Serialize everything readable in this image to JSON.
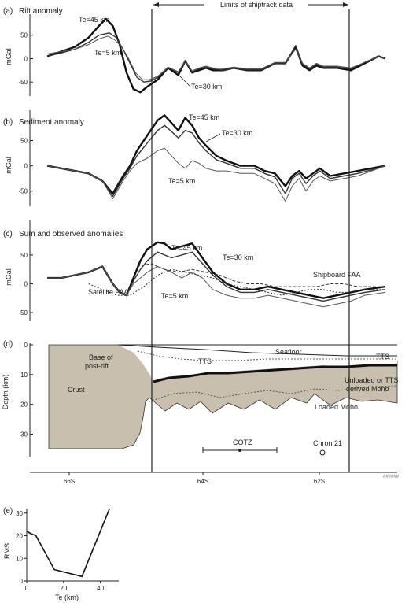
{
  "figure": {
    "header": "Limits of shiptrack data",
    "xtick_labels": [
      "66S",
      "64S",
      "62S"
    ],
    "figure_code": "######"
  },
  "chart_data": [
    {
      "id": "a",
      "type": "line",
      "label": "(a)",
      "title": "Rift anomaly",
      "ylabel": "mGal",
      "yticks": [
        50,
        0,
        -50
      ],
      "ylim": [
        -80,
        95
      ],
      "series": [
        {
          "name": "Te=45 km",
          "x": [
            0,
            20,
            40,
            60,
            75,
            85,
            95,
            105,
            115,
            125,
            135,
            145,
            160,
            175,
            190,
            200,
            210,
            220,
            230,
            240,
            255,
            270,
            290,
            310,
            330,
            345,
            360,
            370,
            380,
            390,
            400,
            420,
            440,
            460,
            480,
            490
          ],
          "y": [
            5,
            15,
            25,
            45,
            70,
            85,
            70,
            30,
            -30,
            -65,
            -72,
            -60,
            -45,
            -20,
            -35,
            -5,
            -30,
            -25,
            -20,
            -25,
            -25,
            -20,
            -25,
            -25,
            -10,
            -10,
            25,
            -15,
            -25,
            -15,
            -20,
            -20,
            -25,
            -10,
            5,
            0
          ]
        },
        {
          "name": "Te=30 km",
          "x": [
            0,
            20,
            40,
            60,
            75,
            90,
            100,
            110,
            120,
            130,
            140,
            150,
            160,
            175,
            190,
            200,
            210,
            220,
            230,
            240,
            255,
            270,
            290,
            310,
            330,
            345,
            360,
            370,
            380,
            390,
            400,
            420,
            440,
            460,
            480,
            490
          ],
          "y": [
            5,
            12,
            20,
            35,
            50,
            55,
            45,
            20,
            -10,
            -40,
            -50,
            -48,
            -40,
            -20,
            -30,
            -5,
            -28,
            -22,
            -18,
            -22,
            -25,
            -20,
            -24,
            -24,
            -10,
            -10,
            28,
            -12,
            -22,
            -12,
            -18,
            -18,
            -22,
            -8,
            5,
            0
          ]
        },
        {
          "name": "Te=5 km",
          "x": [
            0,
            20,
            40,
            60,
            75,
            88,
            98,
            108,
            118,
            128,
            138,
            148,
            160,
            175,
            190,
            200,
            210,
            220,
            230,
            240,
            255,
            270,
            290,
            310,
            330,
            345,
            360,
            370,
            380,
            390,
            400,
            420,
            440,
            460,
            480,
            490
          ],
          "y": [
            10,
            15,
            20,
            30,
            42,
            48,
            40,
            25,
            0,
            -30,
            -45,
            -45,
            -38,
            -18,
            -28,
            -5,
            -26,
            -20,
            -16,
            -20,
            -22,
            -18,
            -22,
            -22,
            -8,
            -8,
            20,
            -10,
            -20,
            -10,
            -16,
            -16,
            -20,
            -8,
            4,
            0
          ]
        }
      ],
      "annotations": [
        "Te=45 km",
        "Te=5 km",
        "Te=30 km"
      ]
    },
    {
      "id": "b",
      "type": "line",
      "label": "(b)",
      "title": "Sediment anomaly",
      "ylabel": "mGal",
      "yticks": [
        50,
        0,
        -50
      ],
      "ylim": [
        -80,
        110
      ],
      "series": [
        {
          "name": "Te=45 km",
          "x": [
            0,
            20,
            40,
            60,
            80,
            95,
            110,
            120,
            130,
            145,
            160,
            170,
            180,
            190,
            200,
            210,
            220,
            230,
            245,
            260,
            280,
            300,
            315,
            330,
            345,
            355,
            365,
            375,
            385,
            395,
            410,
            430,
            450,
            470,
            490
          ],
          "y": [
            0,
            -5,
            -10,
            -15,
            -30,
            -55,
            -20,
            0,
            30,
            60,
            90,
            100,
            85,
            70,
            95,
            80,
            55,
            40,
            20,
            10,
            0,
            0,
            -10,
            -15,
            -40,
            -20,
            -10,
            -25,
            -15,
            -5,
            -20,
            -15,
            -10,
            -5,
            0
          ]
        },
        {
          "name": "Te=30 km",
          "x": [
            0,
            20,
            40,
            60,
            80,
            95,
            110,
            120,
            130,
            145,
            160,
            170,
            180,
            190,
            200,
            210,
            220,
            230,
            245,
            260,
            280,
            300,
            315,
            330,
            345,
            355,
            365,
            375,
            385,
            395,
            410,
            430,
            450,
            470,
            490
          ],
          "y": [
            0,
            -5,
            -10,
            -15,
            -30,
            -60,
            -25,
            -5,
            20,
            45,
            70,
            80,
            68,
            55,
            70,
            65,
            45,
            30,
            12,
            5,
            -5,
            -5,
            -15,
            -22,
            -55,
            -25,
            -15,
            -35,
            -20,
            -10,
            -25,
            -20,
            -15,
            -8,
            0
          ]
        },
        {
          "name": "Te=5 km",
          "x": [
            0,
            20,
            40,
            60,
            80,
            95,
            110,
            120,
            130,
            145,
            160,
            170,
            180,
            190,
            200,
            210,
            220,
            230,
            245,
            260,
            280,
            300,
            315,
            330,
            345,
            355,
            365,
            375,
            385,
            395,
            410,
            430,
            450,
            470,
            490
          ],
          "y": [
            0,
            -5,
            -10,
            -15,
            -30,
            -65,
            -30,
            -10,
            5,
            15,
            30,
            35,
            20,
            5,
            -5,
            10,
            5,
            -5,
            -10,
            -10,
            -15,
            -15,
            -25,
            -35,
            -70,
            -40,
            -25,
            -50,
            -30,
            -20,
            -30,
            -25,
            -20,
            -10,
            0
          ]
        }
      ],
      "annotations": [
        "Te=45 km",
        "Te=30 km",
        "Te=5 km"
      ]
    },
    {
      "id": "c",
      "type": "line",
      "label": "(c)",
      "title": "Sum and observed anomalies",
      "ylabel": "mGal",
      "yticks": [
        50,
        0,
        -50
      ],
      "ylim": [
        -65,
        110
      ],
      "series": [
        {
          "name": "Te=45 km",
          "x": [
            0,
            20,
            40,
            60,
            80,
            95,
            105,
            115,
            125,
            135,
            145,
            160,
            170,
            180,
            195,
            210,
            225,
            240,
            260,
            280,
            300,
            320,
            340,
            360,
            380,
            400,
            420,
            440,
            460,
            490
          ],
          "y": [
            10,
            10,
            15,
            20,
            30,
            0,
            -15,
            -20,
            10,
            40,
            60,
            72,
            70,
            60,
            65,
            70,
            45,
            20,
            0,
            -10,
            -10,
            -5,
            -10,
            -15,
            -20,
            -25,
            -20,
            -15,
            -10,
            -5
          ]
        },
        {
          "name": "Te=30 km",
          "x": [
            0,
            20,
            40,
            60,
            80,
            95,
            105,
            115,
            125,
            135,
            145,
            160,
            170,
            180,
            195,
            210,
            225,
            240,
            260,
            280,
            300,
            320,
            340,
            360,
            380,
            400,
            420,
            440,
            460,
            490
          ],
          "y": [
            10,
            10,
            15,
            20,
            30,
            0,
            -15,
            -20,
            5,
            25,
            40,
            55,
            50,
            45,
            50,
            55,
            35,
            15,
            -5,
            -15,
            -15,
            -10,
            -15,
            -20,
            -25,
            -30,
            -25,
            -20,
            -15,
            -10
          ]
        },
        {
          "name": "Te=5 km",
          "x": [
            0,
            20,
            40,
            60,
            80,
            95,
            105,
            115,
            125,
            135,
            145,
            160,
            170,
            180,
            195,
            210,
            225,
            240,
            260,
            280,
            300,
            320,
            340,
            360,
            380,
            400,
            420,
            440,
            460,
            490
          ],
          "y": [
            10,
            10,
            15,
            20,
            30,
            0,
            -15,
            -20,
            0,
            10,
            20,
            30,
            25,
            20,
            10,
            20,
            10,
            -10,
            -20,
            -25,
            -25,
            -20,
            -25,
            -30,
            -35,
            -40,
            -35,
            -30,
            -20,
            -15
          ]
        },
        {
          "name": "Shipboard FAA",
          "x": [
            130,
            150,
            170,
            190,
            210,
            230,
            250,
            270,
            290,
            310,
            330,
            350,
            370,
            390,
            410,
            430,
            450,
            470,
            490
          ],
          "y": [
            30,
            35,
            25,
            20,
            25,
            20,
            15,
            5,
            0,
            0,
            -5,
            -5,
            -5,
            -5,
            0,
            0,
            -5,
            -5,
            -5
          ]
        },
        {
          "name": "Satellite FAA",
          "x": [
            60,
            80,
            100,
            120,
            140,
            160,
            180,
            200,
            220,
            240,
            260,
            280,
            300,
            320,
            340,
            360,
            380,
            400,
            420,
            440,
            460,
            480,
            490
          ],
          "y": [
            0,
            -10,
            -20,
            -20,
            -5,
            15,
            25,
            20,
            15,
            10,
            0,
            -5,
            -10,
            -15,
            -20,
            -15,
            -10,
            -10,
            -15,
            -15,
            -10,
            -10,
            -10
          ]
        }
      ],
      "annotations": [
        "Te=45 km",
        "Te=30 km",
        "Te=5 km",
        "Shipboard FAA",
        "Satellite FAA"
      ]
    },
    {
      "id": "d",
      "type": "area",
      "label": "(d)",
      "ylabel": "Depth (km)",
      "yticks": [
        0,
        10,
        20,
        30
      ],
      "ylim": [
        0,
        37
      ],
      "labels": {
        "seafloor": "Seafloor",
        "tts_right": "TTS",
        "tts_mid": "TTS",
        "base_post_rift_1": "Base of",
        "base_post_rift_2": "post-rift",
        "crust": "Crust",
        "unloaded_1": "Unloaded or TTS",
        "unloaded_2": "derived Moho",
        "loaded_moho": "Loaded Moho",
        "cotz": "COTZ",
        "chron": "Chron 21"
      }
    },
    {
      "id": "e",
      "type": "line",
      "label": "(e)",
      "xlabel": "Te (km)",
      "ylabel": "RMS",
      "xlim": [
        0,
        50
      ],
      "ylim": [
        0,
        32
      ],
      "xticks": [
        0,
        20,
        40
      ],
      "yticks": [
        0,
        10,
        20,
        30
      ],
      "series": [
        {
          "name": "",
          "x": [
            0,
            2,
            5,
            15,
            30,
            45
          ],
          "y": [
            22,
            21,
            20,
            5,
            2,
            32
          ]
        }
      ]
    }
  ]
}
